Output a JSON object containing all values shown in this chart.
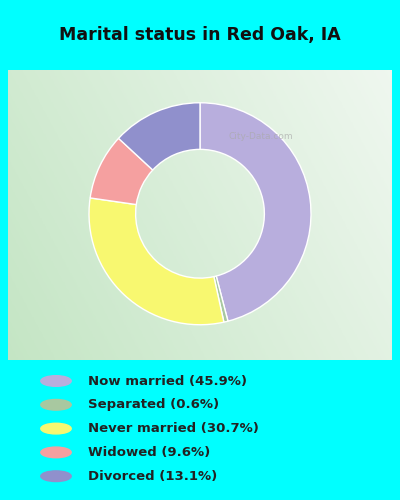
{
  "title": "Marital status in Red Oak, IA",
  "slices": [
    {
      "label": "Now married (45.9%)",
      "value": 45.9,
      "color": "#b8aedd"
    },
    {
      "label": "Separated (0.6%)",
      "value": 0.6,
      "color": "#a8c8a0"
    },
    {
      "label": "Never married (30.7%)",
      "value": 30.7,
      "color": "#f8f870"
    },
    {
      "label": "Widowed (9.6%)",
      "value": 9.6,
      "color": "#f5a0a0"
    },
    {
      "label": "Divorced (13.1%)",
      "value": 13.1,
      "color": "#9090cc"
    }
  ],
  "bg_cyan": "#00ffff",
  "bg_chart_color1": "#c8e8c8",
  "bg_chart_color2": "#e8f5e8",
  "title_color": "#111111",
  "legend_text_color": "#222222",
  "start_angle": 90,
  "watermark": "City-Data.com"
}
